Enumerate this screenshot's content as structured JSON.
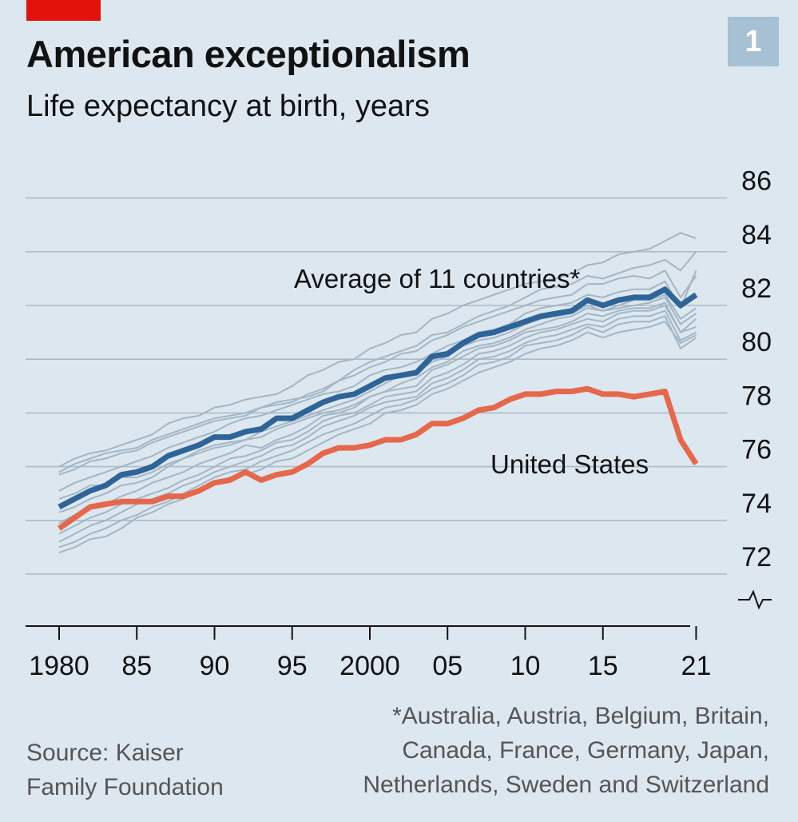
{
  "header": {
    "title": "American exceptionalism",
    "subtitle": "Life expectancy at birth, years",
    "chart_number": "1"
  },
  "colors": {
    "background": "#dce7ef",
    "average": "#2e6498",
    "united_states": "#e6684c",
    "countries": "#a3b6c5",
    "gridline": "#adbbc7",
    "tag": "#e3120b"
  },
  "chart_data": {
    "type": "line",
    "title": "American exceptionalism",
    "subtitle": "Life expectancy at birth, years",
    "x": [
      1980,
      1981,
      1982,
      1983,
      1984,
      1985,
      1986,
      1987,
      1988,
      1989,
      1990,
      1991,
      1992,
      1993,
      1994,
      1995,
      1996,
      1997,
      1998,
      1999,
      2000,
      2001,
      2002,
      2003,
      2004,
      2005,
      2006,
      2007,
      2008,
      2009,
      2010,
      2011,
      2012,
      2013,
      2014,
      2015,
      2016,
      2017,
      2018,
      2019,
      2020,
      2021
    ],
    "x_ticks": [
      1980,
      1985,
      1990,
      1995,
      2000,
      2005,
      2010,
      2015,
      2021
    ],
    "x_tick_labels": [
      "1980",
      "85",
      "90",
      "95",
      "2000",
      "05",
      "10",
      "15",
      "21"
    ],
    "y_ticks": [
      72,
      74,
      76,
      78,
      80,
      82,
      84,
      86
    ],
    "y_tick_labels": [
      "72",
      "74",
      "76",
      "78",
      "80",
      "82",
      "84",
      "86"
    ],
    "ylim": [
      71.0,
      86.3
    ],
    "axis_break": true,
    "grid": true,
    "series": [
      {
        "name": "Average of 11 countries*",
        "role": "average",
        "values": [
          74.5,
          74.8,
          75.1,
          75.3,
          75.7,
          75.8,
          76.0,
          76.4,
          76.6,
          76.8,
          77.1,
          77.1,
          77.3,
          77.4,
          77.8,
          77.8,
          78.1,
          78.4,
          78.6,
          78.7,
          79.0,
          79.3,
          79.4,
          79.5,
          80.1,
          80.2,
          80.6,
          80.9,
          81.0,
          81.2,
          81.4,
          81.6,
          81.7,
          81.8,
          82.2,
          82.0,
          82.2,
          82.3,
          82.3,
          82.6,
          82.0,
          82.4
        ]
      },
      {
        "name": "United States",
        "role": "us",
        "values": [
          73.7,
          74.1,
          74.5,
          74.6,
          74.7,
          74.7,
          74.7,
          74.9,
          74.9,
          75.1,
          75.4,
          75.5,
          75.8,
          75.5,
          75.7,
          75.8,
          76.1,
          76.5,
          76.7,
          76.7,
          76.8,
          77.0,
          77.0,
          77.2,
          77.6,
          77.6,
          77.8,
          78.1,
          78.2,
          78.5,
          78.7,
          78.7,
          78.8,
          78.8,
          78.9,
          78.7,
          78.7,
          78.6,
          78.7,
          78.8,
          77.0,
          76.1
        ]
      },
      {
        "role": "country",
        "values": [
          76.0,
          76.3,
          76.5,
          76.6,
          76.8,
          77.0,
          77.2,
          77.6,
          77.8,
          77.9,
          78.2,
          78.3,
          78.5,
          78.6,
          78.7,
          79.0,
          79.4,
          79.6,
          79.9,
          80.0,
          80.4,
          80.6,
          80.9,
          81.0,
          81.5,
          81.7,
          82.0,
          82.2,
          82.4,
          82.6,
          82.8,
          82.9,
          83.0,
          83.2,
          83.5,
          83.6,
          83.9,
          84.0,
          84.1,
          84.4,
          84.7,
          84.5
        ]
      },
      {
        "role": "country",
        "values": [
          75.8,
          76.1,
          76.3,
          76.5,
          76.6,
          76.7,
          77.0,
          77.2,
          77.4,
          77.6,
          77.8,
          77.9,
          78.0,
          78.2,
          78.4,
          78.5,
          78.6,
          78.8,
          79.2,
          79.6,
          79.9,
          80.1,
          80.3,
          80.5,
          80.9,
          81.0,
          81.3,
          81.6,
          81.8,
          82.0,
          82.3,
          82.6,
          82.7,
          82.8,
          83.1,
          83.0,
          83.2,
          83.4,
          83.5,
          83.7,
          83.3,
          84.0
        ]
      },
      {
        "role": "country",
        "values": [
          75.7,
          75.9,
          76.2,
          76.3,
          76.5,
          76.6,
          76.9,
          77.1,
          77.3,
          77.5,
          77.7,
          77.8,
          77.9,
          78.2,
          78.3,
          78.4,
          78.7,
          78.9,
          79.2,
          79.4,
          79.7,
          79.9,
          80.2,
          80.3,
          80.7,
          80.9,
          81.2,
          81.4,
          81.6,
          81.8,
          82.0,
          82.2,
          82.3,
          82.4,
          82.8,
          82.8,
          83.0,
          83.1,
          83.0,
          83.3,
          82.3,
          83.1
        ]
      },
      {
        "role": "country",
        "values": [
          75.1,
          75.4,
          75.6,
          75.8,
          76.0,
          76.2,
          76.4,
          76.7,
          76.9,
          77.1,
          77.3,
          77.6,
          77.8,
          77.9,
          78.1,
          78.3,
          78.5,
          78.7,
          78.8,
          79.0,
          79.4,
          79.6,
          79.7,
          79.9,
          80.2,
          80.5,
          80.7,
          81.0,
          81.1,
          81.3,
          81.7,
          81.9,
          82.0,
          82.1,
          82.4,
          82.3,
          82.5,
          82.6,
          82.6,
          82.9,
          81.9,
          83.3
        ]
      },
      {
        "role": "country",
        "values": [
          74.8,
          75.0,
          75.3,
          75.3,
          75.6,
          75.6,
          75.8,
          76.1,
          76.3,
          76.6,
          76.8,
          76.9,
          77.0,
          77.3,
          77.5,
          77.7,
          77.9,
          78.1,
          78.3,
          78.5,
          78.8,
          79.1,
          79.4,
          79.5,
          79.9,
          80.1,
          80.5,
          80.7,
          80.8,
          81.0,
          81.3,
          81.5,
          81.6,
          81.7,
          82.0,
          81.8,
          82.0,
          82.2,
          82.2,
          82.4,
          81.5,
          81.9
        ]
      },
      {
        "role": "country",
        "values": [
          74.3,
          74.5,
          74.8,
          75.0,
          75.3,
          75.4,
          75.6,
          76.0,
          76.3,
          76.5,
          76.7,
          76.8,
          77.0,
          77.1,
          77.4,
          77.6,
          77.8,
          78.0,
          78.1,
          78.3,
          78.6,
          78.8,
          79.1,
          79.3,
          79.7,
          79.9,
          80.3,
          80.5,
          80.6,
          80.8,
          81.1,
          81.3,
          81.5,
          81.6,
          81.9,
          81.8,
          81.9,
          82.0,
          82.1,
          82.3,
          81.3,
          81.7
        ]
      },
      {
        "role": "country",
        "values": [
          73.9,
          74.2,
          74.5,
          74.6,
          74.9,
          75.1,
          75.4,
          75.6,
          75.8,
          76.1,
          76.3,
          76.5,
          76.8,
          76.7,
          77.0,
          77.2,
          77.5,
          77.9,
          78.0,
          78.2,
          78.6,
          78.8,
          78.9,
          79.0,
          79.6,
          79.8,
          80.1,
          80.4,
          80.5,
          80.7,
          81.0,
          81.1,
          81.2,
          81.4,
          81.7,
          81.6,
          81.8,
          81.9,
          81.9,
          82.1,
          81.0,
          81.5
        ]
      },
      {
        "role": "country",
        "values": [
          73.5,
          73.8,
          74.1,
          74.3,
          74.6,
          74.8,
          75.0,
          75.2,
          75.5,
          75.7,
          76.0,
          76.3,
          76.4,
          76.6,
          76.9,
          77.0,
          77.3,
          77.7,
          77.9,
          78.0,
          78.3,
          78.6,
          78.7,
          78.8,
          79.3,
          79.5,
          79.8,
          80.2,
          80.3,
          80.5,
          80.8,
          81.0,
          81.1,
          81.3,
          81.5,
          81.4,
          81.7,
          81.8,
          81.8,
          82.0,
          81.0,
          81.2
        ]
      },
      {
        "role": "country",
        "values": [
          73.2,
          73.5,
          73.8,
          74.0,
          74.3,
          74.6,
          74.8,
          75.0,
          75.3,
          75.5,
          75.8,
          76.0,
          76.2,
          76.4,
          76.7,
          76.8,
          77.1,
          77.5,
          77.7,
          77.9,
          78.2,
          78.4,
          78.5,
          78.6,
          79.1,
          79.3,
          79.6,
          80.0,
          80.1,
          80.3,
          80.6,
          80.8,
          80.9,
          81.1,
          81.3,
          81.2,
          81.5,
          81.6,
          81.6,
          81.8,
          80.7,
          81.0
        ]
      },
      {
        "role": "country",
        "values": [
          73.0,
          73.2,
          73.5,
          73.7,
          74.0,
          74.2,
          74.5,
          74.7,
          75.0,
          75.3,
          75.6,
          75.8,
          75.9,
          76.2,
          76.4,
          76.6,
          76.9,
          77.2,
          77.4,
          77.6,
          77.9,
          78.2,
          78.3,
          78.5,
          78.9,
          79.1,
          79.4,
          79.8,
          79.9,
          80.1,
          80.5,
          80.6,
          80.7,
          80.9,
          81.2,
          81.0,
          81.3,
          81.4,
          81.4,
          81.6,
          80.4,
          80.8
        ]
      },
      {
        "role": "country",
        "values": [
          72.8,
          73.0,
          73.3,
          73.4,
          73.7,
          74.1,
          74.3,
          74.6,
          74.8,
          75.1,
          75.4,
          75.6,
          75.7,
          75.9,
          76.2,
          76.3,
          76.6,
          76.9,
          77.2,
          77.4,
          77.6,
          78.0,
          78.1,
          78.3,
          78.7,
          78.9,
          79.2,
          79.5,
          79.7,
          79.9,
          80.2,
          80.4,
          80.5,
          80.7,
          81.0,
          80.8,
          81.0,
          81.1,
          81.2,
          81.4,
          80.6,
          80.9
        ]
      }
    ],
    "annotations": [
      "Average of 11 countries*",
      "United States"
    ]
  },
  "footer": {
    "source_line1": "Source: Kaiser",
    "source_line2": "Family Foundation",
    "footnote_line1": "*Australia, Austria, Belgium, Britain,",
    "footnote_line2": "Canada, France, Germany, Japan,",
    "footnote_line3": "Netherlands, Sweden and Switzerland"
  }
}
